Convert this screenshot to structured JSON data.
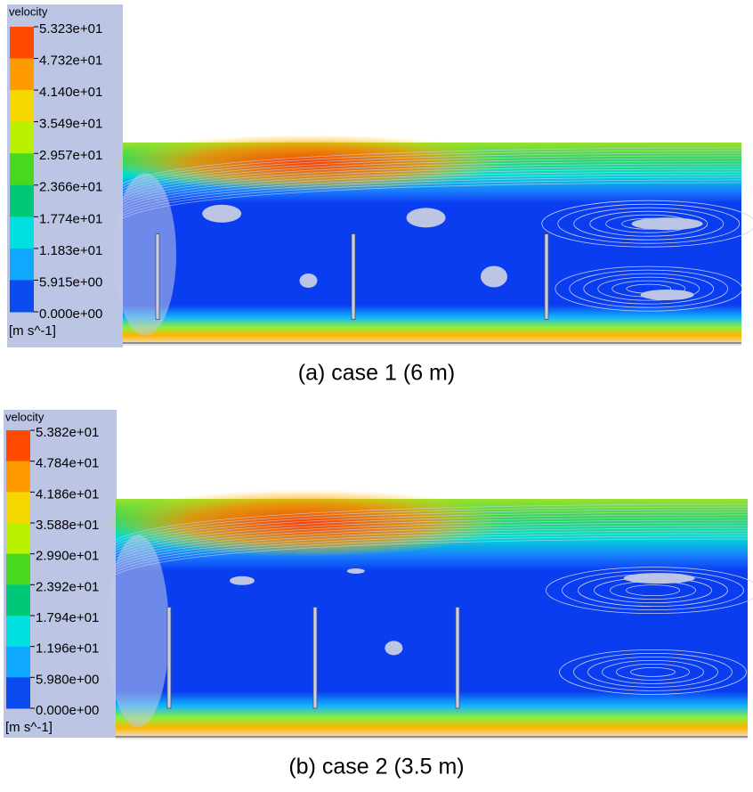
{
  "panels": [
    {
      "legend": {
        "title": "velocity",
        "labels": [
          "5.323e+01",
          "4.732e+01",
          "4.140e+01",
          "3.549e+01",
          "2.957e+01",
          "2.366e+01",
          "1.774e+01",
          "1.183e+01",
          "5.915e+00",
          "0.000e+00"
        ],
        "unit": "[m s^-1]"
      },
      "caption": "(a) case 1 (6 m)"
    },
    {
      "legend": {
        "title": "velocity",
        "labels": [
          "5.382e+01",
          "4.784e+01",
          "4.186e+01",
          "3.588e+01",
          "2.990e+01",
          "2.392e+01",
          "1.794e+01",
          "1.196e+01",
          "5.980e+00",
          "0.000e+00"
        ],
        "unit": "[m s^-1]"
      },
      "caption": "(b) case 2 (3.5 m)"
    }
  ]
}
